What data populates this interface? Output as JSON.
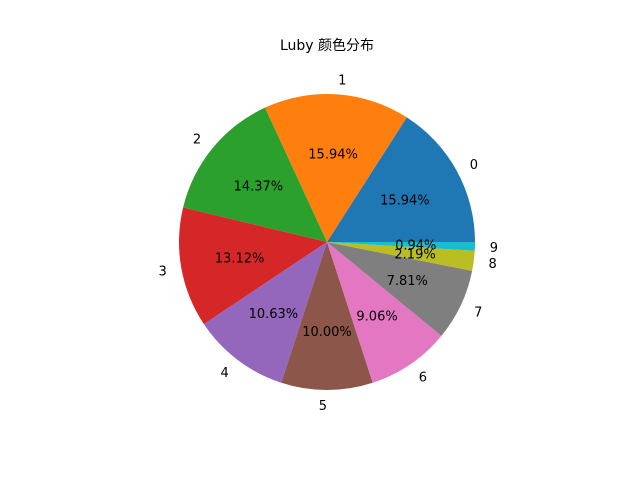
{
  "chart_data": {
    "type": "pie",
    "title": "Luby 颜色分布",
    "labels": [
      "0",
      "1",
      "2",
      "3",
      "4",
      "5",
      "6",
      "7",
      "8",
      "9"
    ],
    "values": [
      15.94,
      15.94,
      14.37,
      13.12,
      10.63,
      10.0,
      9.06,
      7.81,
      2.19,
      0.94
    ],
    "pct_labels": [
      "15.94%",
      "15.94%",
      "14.37%",
      "13.12%",
      "10.63%",
      "10.00%",
      "9.06%",
      "7.81%",
      "2.19%",
      "0.94%"
    ],
    "colors": [
      "#1f77b4",
      "#ff7f0e",
      "#2ca02c",
      "#d62728",
      "#9467bd",
      "#8c564b",
      "#e377c2",
      "#7f7f7f",
      "#bcbd22",
      "#17becf"
    ],
    "start_angle_deg": 0,
    "direction": "counterclockwise"
  }
}
